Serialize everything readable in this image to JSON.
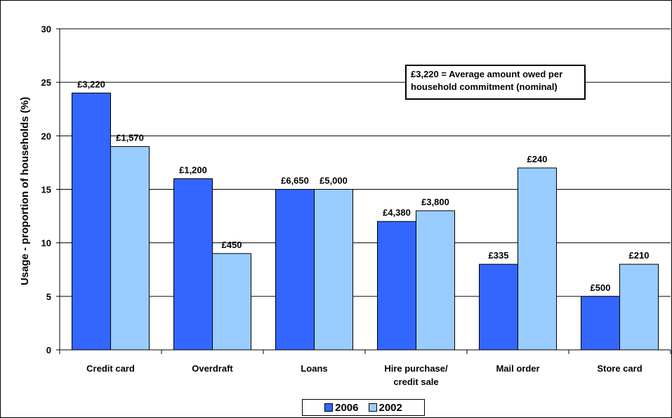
{
  "chart_data": {
    "type": "bar",
    "categories": [
      [
        "Credit card"
      ],
      [
        "Overdraft"
      ],
      [
        "Loans"
      ],
      [
        "Hire purchase/",
        "credit sale"
      ],
      [
        "Mail order"
      ],
      [
        "Store card"
      ]
    ],
    "series": [
      {
        "name": "2006",
        "color": "#3366ff",
        "values": [
          24,
          16,
          15,
          12,
          8,
          5
        ],
        "labels": [
          "£3,220",
          "£1,200",
          "£6,650",
          "£4,380",
          "£335",
          "£500"
        ]
      },
      {
        "name": "2002",
        "color": "#99ccff",
        "values": [
          19,
          9,
          15,
          13,
          17,
          8
        ],
        "labels": [
          "£1,570",
          "£450",
          "£5,000",
          "£3,800",
          "£240",
          "£210"
        ]
      }
    ],
    "ylabel": "Usage - proportion of households (%)",
    "xlabel": "",
    "title": "",
    "ylim": [
      0,
      30
    ],
    "yticks": [
      0,
      5,
      10,
      15,
      20,
      25,
      30
    ],
    "grid": true,
    "legend_position": "bottom",
    "annotation": [
      "£3,220 = Average amount owed per",
      "household commitment (nominal)"
    ]
  }
}
